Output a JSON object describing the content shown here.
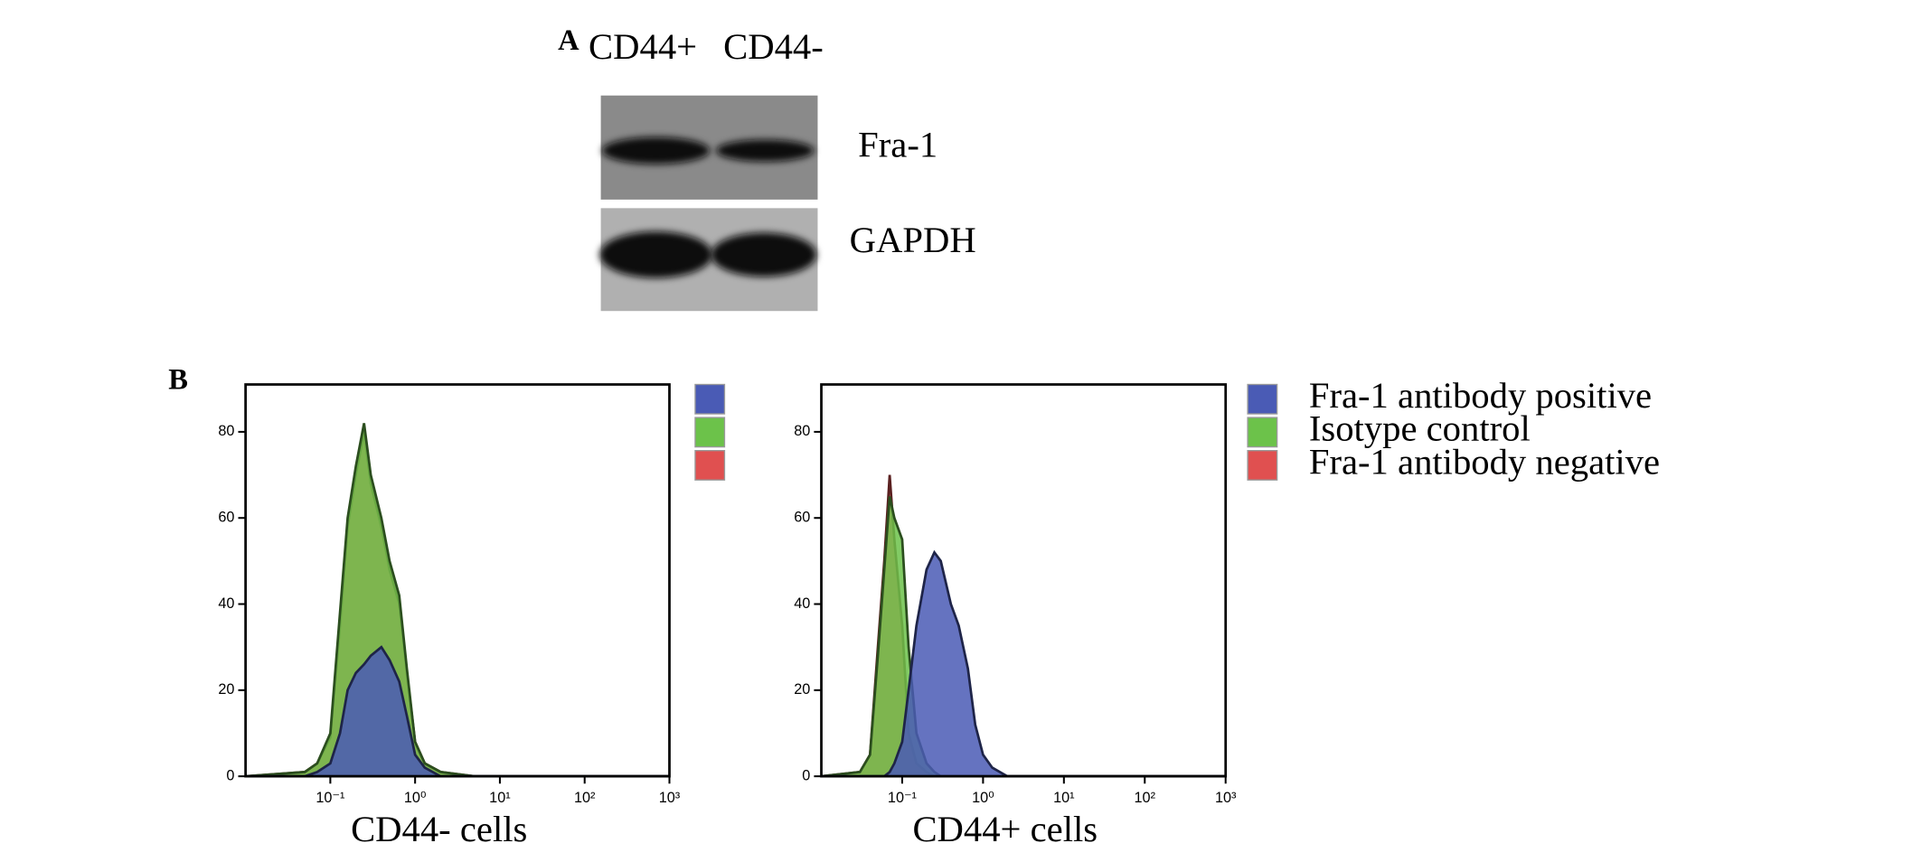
{
  "blot": {
    "label": "A",
    "lanes": [
      "CD44+",
      "CD44-"
    ],
    "proteins": [
      "Fra-1",
      "GAPDH"
    ]
  },
  "panel_b": {
    "label": "B"
  },
  "chart_data": [
    {
      "type": "histogram-area",
      "xlabel": "CD44- cells",
      "log": true,
      "legend": "right",
      "x": [
        0.01,
        0.05,
        0.07,
        0.1,
        0.13,
        0.16,
        0.2,
        0.25,
        0.3,
        0.4,
        0.5,
        0.65,
        0.8,
        1,
        1.3,
        2,
        5,
        1000
      ],
      "xlim": [
        0.01,
        1000
      ],
      "xticks": [
        {
          "value": 0.1,
          "label": "10⁻¹"
        },
        {
          "value": 1,
          "label": "10⁰"
        },
        {
          "value": 10,
          "label": "10¹"
        },
        {
          "value": 100,
          "label": "10²"
        },
        {
          "value": 1000,
          "label": "10³"
        }
      ],
      "ylim": [
        0,
        91
      ],
      "yticks": [
        0,
        20,
        40,
        60,
        80
      ],
      "series": [
        {
          "color": "#e05050",
          "values": [
            0,
            1,
            3,
            9,
            35,
            58,
            70,
            80,
            68,
            58,
            48,
            40,
            24,
            8,
            3,
            1,
            0,
            0
          ]
        },
        {
          "color": "#6cc24a",
          "values": [
            0,
            1,
            3,
            10,
            38,
            60,
            72,
            82,
            70,
            60,
            50,
            42,
            25,
            8,
            3,
            1,
            0,
            0
          ]
        },
        {
          "color": "#4a5bb5",
          "values": [
            0,
            0,
            1,
            3,
            10,
            20,
            24,
            26,
            28,
            30,
            27,
            22,
            14,
            5,
            2,
            0,
            0,
            0
          ]
        }
      ]
    },
    {
      "type": "histogram-area",
      "xlabel": "CD44+ cells",
      "log": true,
      "legend": "right",
      "x": [
        0.01,
        0.03,
        0.04,
        0.05,
        0.06,
        0.07,
        0.08,
        0.1,
        0.12,
        0.15,
        0.2,
        0.25,
        0.3,
        0.4,
        0.5,
        0.65,
        0.8,
        1,
        1.3,
        2,
        1000
      ],
      "xlim": [
        0.01,
        1000
      ],
      "xticks": [
        {
          "value": 0.1,
          "label": "10⁻¹"
        },
        {
          "value": 1,
          "label": "10⁰"
        },
        {
          "value": 10,
          "label": "10¹"
        },
        {
          "value": 100,
          "label": "10²"
        },
        {
          "value": 1000,
          "label": "10³"
        }
      ],
      "ylim": [
        0,
        91
      ],
      "yticks": [
        0,
        20,
        40,
        60,
        80
      ],
      "series": [
        {
          "name": "Fra-1 antibody negative",
          "color": "#e05050",
          "values": [
            0,
            1,
            5,
            30,
            50,
            70,
            55,
            35,
            10,
            3,
            1,
            0,
            0,
            0,
            0,
            0,
            0,
            0,
            0,
            0,
            0
          ]
        },
        {
          "name": "Isotype control",
          "color": "#6cc24a",
          "values": [
            0,
            1,
            5,
            28,
            48,
            65,
            60,
            55,
            30,
            10,
            3,
            1,
            0,
            0,
            0,
            0,
            0,
            0,
            0,
            0,
            0
          ]
        },
        {
          "name": "Fra-1 antibody positive",
          "color": "#4a5bb5",
          "values": [
            0,
            0,
            0,
            0,
            0,
            1,
            3,
            8,
            20,
            35,
            48,
            52,
            50,
            40,
            35,
            25,
            12,
            5,
            2,
            0,
            0
          ]
        }
      ]
    }
  ]
}
